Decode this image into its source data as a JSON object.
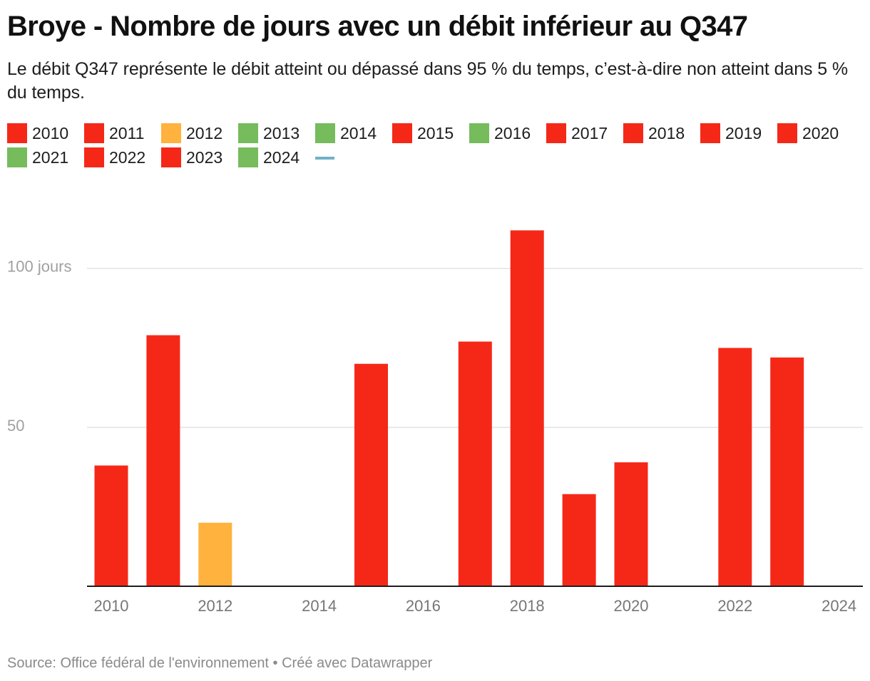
{
  "header": {
    "title": "Broye - Nombre de jours avec un débit inférieur au Q347",
    "subtitle": "Le débit Q347 représente le débit atteint ou dépassé dans 95 % du temps, c’est-à-dire non atteint dans 5 % du temps."
  },
  "colors": {
    "red": "#f52818",
    "orange": "#ffb23d",
    "green": "#76bb5c",
    "line": "#6fb1c9",
    "grid": "#e2e2e2",
    "axis": "#1d1d1d"
  },
  "legend": {
    "rows": [
      [
        {
          "label": "2010",
          "color": "#f52818"
        },
        {
          "label": "2011",
          "color": "#f52818"
        },
        {
          "label": "2012",
          "color": "#ffb23d"
        },
        {
          "label": "2013",
          "color": "#76bb5c"
        },
        {
          "label": "2014",
          "color": "#76bb5c"
        },
        {
          "label": "2015",
          "color": "#f52818"
        },
        {
          "label": "2016",
          "color": "#76bb5c"
        },
        {
          "label": "2017",
          "color": "#f52818"
        },
        {
          "label": "2018",
          "color": "#f52818"
        },
        {
          "label": "2019",
          "color": "#f52818"
        },
        {
          "label": "2020",
          "color": "#f52818"
        }
      ],
      [
        {
          "label": "2021",
          "color": "#76bb5c"
        },
        {
          "label": "2022",
          "color": "#f52818"
        },
        {
          "label": "2023",
          "color": "#f52818"
        },
        {
          "label": "2024",
          "color": "#76bb5c"
        },
        {
          "label": "",
          "color": "#6fb1c9",
          "kind": "line"
        }
      ]
    ]
  },
  "chart_data": {
    "type": "bar",
    "title": "Broye - Nombre de jours avec un débit inférieur au Q347",
    "xlabel": "",
    "ylabel": "jours",
    "categories": [
      "2010",
      "2011",
      "2012",
      "2013",
      "2014",
      "2015",
      "2016",
      "2017",
      "2018",
      "2019",
      "2020",
      "2021",
      "2022",
      "2023",
      "2024"
    ],
    "values": [
      38,
      79,
      20,
      0,
      0,
      70,
      0,
      77,
      112,
      29,
      39,
      0,
      75,
      72,
      0
    ],
    "bar_colors": [
      "#f52818",
      "#f52818",
      "#ffb23d",
      "#76bb5c",
      "#76bb5c",
      "#f52818",
      "#76bb5c",
      "#f52818",
      "#f52818",
      "#f52818",
      "#f52818",
      "#76bb5c",
      "#f52818",
      "#f52818",
      "#76bb5c"
    ],
    "ylim": [
      0,
      115
    ],
    "y_ticks": [
      {
        "value": 50,
        "label": "50"
      },
      {
        "value": 100,
        "label": "100 jours"
      }
    ],
    "x_ticks": [
      "2010",
      "2012",
      "2014",
      "2016",
      "2018",
      "2020",
      "2022",
      "2024"
    ],
    "grid": true,
    "legend_position": "top"
  },
  "footer": {
    "source": "Source: Office fédéral de l'environnement • Créé avec Datawrapper"
  }
}
